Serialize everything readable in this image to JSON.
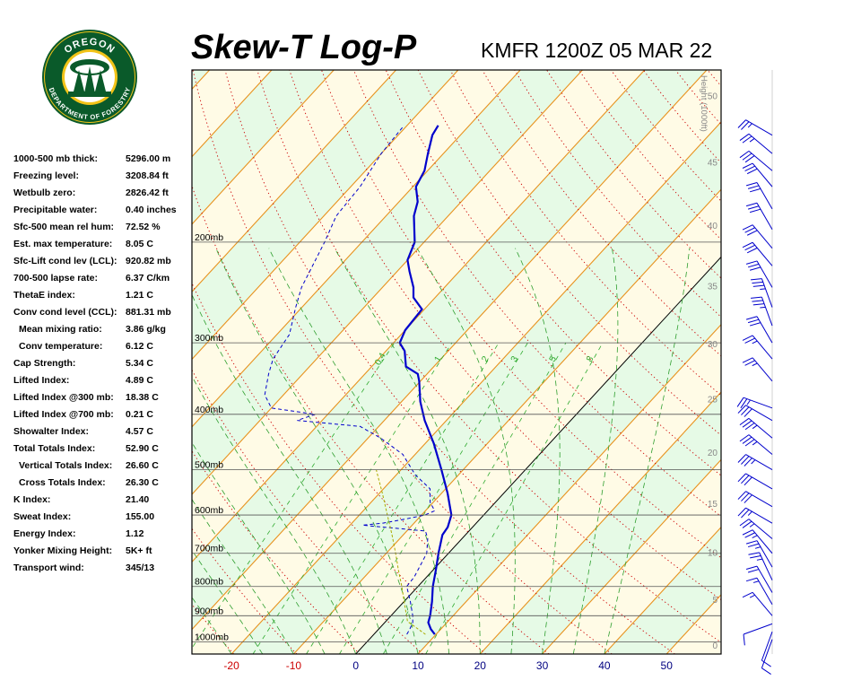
{
  "header": {
    "title": "Skew-T Log-P",
    "station_time": "KMFR 1200Z 05 MAR 22"
  },
  "logo": {
    "top_text": "OREGON",
    "bottom_text": "DEPARTMENT OF FORESTRY",
    "colors": {
      "ring": "#0a5a2a",
      "inner": "#f2c318",
      "trees": "#0a5a2a"
    }
  },
  "indices": [
    {
      "label": "1000-500 mb thick:",
      "value": "5296.00 m",
      "indent": false
    },
    {
      "label": "Freezing level:",
      "value": "3208.84 ft",
      "indent": false
    },
    {
      "label": "Wetbulb zero:",
      "value": "2826.42 ft",
      "indent": false
    },
    {
      "label": "Precipitable water:",
      "value": "0.40 inches",
      "indent": false
    },
    {
      "label": "Sfc-500 mean rel hum:",
      "value": "72.52 %",
      "indent": false
    },
    {
      "label": "Est. max temperature:",
      "value": "8.05 C",
      "indent": false
    },
    {
      "label": "Sfc-Lift cond lev (LCL):",
      "value": "920.82 mb",
      "indent": false
    },
    {
      "label": "700-500 lapse rate:",
      "value": "6.37 C/km",
      "indent": false
    },
    {
      "label": "ThetaE index:",
      "value": "1.21 C",
      "indent": false
    },
    {
      "label": "Conv cond level (CCL):",
      "value": "881.31 mb",
      "indent": false
    },
    {
      "label": "Mean mixing ratio:",
      "value": "3.86 g/kg",
      "indent": true
    },
    {
      "label": "Conv temperature:",
      "value": "6.12 C",
      "indent": true
    },
    {
      "label": "Cap Strength:",
      "value": "5.34 C",
      "indent": false
    },
    {
      "label": "Lifted Index:",
      "value": "4.89 C",
      "indent": false
    },
    {
      "label": "Lifted Index @300 mb:",
      "value": "18.38 C",
      "indent": false
    },
    {
      "label": "Lifted Index @700 mb:",
      "value": "0.21 C",
      "indent": false
    },
    {
      "label": "Showalter Index:",
      "value": "4.57 C",
      "indent": false
    },
    {
      "label": "Total Totals Index:",
      "value": "52.90 C",
      "indent": false
    },
    {
      "label": "Vertical Totals Index:",
      "value": "26.60 C",
      "indent": true
    },
    {
      "label": "Cross Totals Index:",
      "value": "26.30 C",
      "indent": true
    },
    {
      "label": "K Index:",
      "value": "21.40",
      "indent": false
    },
    {
      "label": "Sweat Index:",
      "value": "155.00",
      "indent": false
    },
    {
      "label": "Energy Index:",
      "value": "1.12",
      "indent": false
    },
    {
      "label": "Yonker Mixing Height:",
      "value": "5K+ ft",
      "indent": false
    },
    {
      "label": "Transport wind:",
      "value": "345/13",
      "indent": false
    }
  ],
  "chart_data": {
    "type": "line",
    "x_ticks": [
      {
        "value": -20,
        "label": "-20"
      },
      {
        "value": -10,
        "label": "-10"
      },
      {
        "value": 0,
        "label": "0"
      },
      {
        "value": 10,
        "label": "10"
      },
      {
        "value": 20,
        "label": "20"
      },
      {
        "value": 30,
        "label": "30"
      },
      {
        "value": 40,
        "label": "40"
      },
      {
        "value": 50,
        "label": "50"
      }
    ],
    "x_tick_colors": {
      "negative": "#cc0000",
      "nonnegative": "#000080"
    },
    "pressure_levels": [
      {
        "p": 200,
        "label": "200mb"
      },
      {
        "p": 300,
        "label": "300mb"
      },
      {
        "p": 400,
        "label": "400mb"
      },
      {
        "p": 500,
        "label": "500mb"
      },
      {
        "p": 600,
        "label": "600mb"
      },
      {
        "p": 700,
        "label": "700mb"
      },
      {
        "p": 800,
        "label": "800mb"
      },
      {
        "p": 900,
        "label": "900mb"
      },
      {
        "p": 1000,
        "label": "1000mb"
      }
    ],
    "height_axis": {
      "label": "Height (1000ft)",
      "ticks": [
        {
          "kft": 0,
          "label": "0"
        },
        {
          "kft": 5,
          "label": "5"
        },
        {
          "kft": 10,
          "label": "10"
        },
        {
          "kft": 15,
          "label": "15"
        },
        {
          "kft": 20,
          "label": "20"
        },
        {
          "kft": 25,
          "label": "25"
        },
        {
          "kft": 30,
          "label": "30"
        },
        {
          "kft": 35,
          "label": "35"
        },
        {
          "kft": 40,
          "label": "40"
        },
        {
          "kft": 45,
          "label": "45"
        },
        {
          "kft": 50,
          "label": "50"
        }
      ]
    },
    "mixing_ratio_lines": [
      {
        "w": 0.4,
        "label": "0.4"
      },
      {
        "w": 1,
        "label": "1"
      },
      {
        "w": 2,
        "label": "2"
      },
      {
        "w": 3,
        "label": "3"
      },
      {
        "w": 5,
        "label": "5"
      },
      {
        "w": 8,
        "label": "8"
      }
    ],
    "series": [
      {
        "key": "temperature",
        "color": "#0000cc",
        "points": [
          {
            "p": 970,
            "t": 9.8
          },
          {
            "p": 950,
            "t": 8.4
          },
          {
            "p": 925,
            "t": 7.0
          },
          {
            "p": 900,
            "t": 6.3
          },
          {
            "p": 850,
            "t": 4.5
          },
          {
            "p": 800,
            "t": 2.4
          },
          {
            "p": 750,
            "t": 0.5
          },
          {
            "p": 700,
            "t": -1.6
          },
          {
            "p": 650,
            "t": -3.7
          },
          {
            "p": 630,
            "t": -4.0
          },
          {
            "p": 600,
            "t": -5.2
          },
          {
            "p": 550,
            "t": -9.0
          },
          {
            "p": 500,
            "t": -13.5
          },
          {
            "p": 450,
            "t": -18.6
          },
          {
            "p": 410,
            "t": -23.5
          },
          {
            "p": 380,
            "t": -27.0
          },
          {
            "p": 350,
            "t": -30.2
          },
          {
            "p": 340,
            "t": -31.5
          },
          {
            "p": 330,
            "t": -34.5
          },
          {
            "p": 310,
            "t": -37.0
          },
          {
            "p": 300,
            "t": -39.0
          },
          {
            "p": 285,
            "t": -40.0
          },
          {
            "p": 262,
            "t": -40.4
          },
          {
            "p": 250,
            "t": -43.5
          },
          {
            "p": 240,
            "t": -45.0
          },
          {
            "p": 225,
            "t": -48.0
          },
          {
            "p": 215,
            "t": -50.0
          },
          {
            "p": 200,
            "t": -51.5
          },
          {
            "p": 180,
            "t": -55.5
          },
          {
            "p": 170,
            "t": -57.0
          },
          {
            "p": 160,
            "t": -59.5
          },
          {
            "p": 150,
            "t": -60.5
          },
          {
            "p": 140,
            "t": -62.5
          },
          {
            "p": 130,
            "t": -64.5
          },
          {
            "p": 125,
            "t": -65.0
          }
        ]
      },
      {
        "key": "dewpoint",
        "color": "#0000cc",
        "points": [
          {
            "p": 970,
            "t": 5.3
          },
          {
            "p": 950,
            "t": 5.0
          },
          {
            "p": 925,
            "t": 4.5
          },
          {
            "p": 900,
            "t": 3.5
          },
          {
            "p": 850,
            "t": 1.0
          },
          {
            "p": 800,
            "t": -1.8
          },
          {
            "p": 770,
            "t": -2.0
          },
          {
            "p": 700,
            "t": -3.5
          },
          {
            "p": 660,
            "t": -5.5
          },
          {
            "p": 640,
            "t": -7.0
          },
          {
            "p": 625,
            "t": -18.0
          },
          {
            "p": 620,
            "t": -15.0
          },
          {
            "p": 610,
            "t": -12.0
          },
          {
            "p": 600,
            "t": -9.5
          },
          {
            "p": 590,
            "t": -8.5
          },
          {
            "p": 570,
            "t": -10.5
          },
          {
            "p": 540,
            "t": -12.5
          },
          {
            "p": 510,
            "t": -17.0
          },
          {
            "p": 470,
            "t": -22.0
          },
          {
            "p": 440,
            "t": -28.0
          },
          {
            "p": 420,
            "t": -33.0
          },
          {
            "p": 410,
            "t": -44.0
          },
          {
            "p": 400,
            "t": -42.0
          },
          {
            "p": 390,
            "t": -50.0
          },
          {
            "p": 370,
            "t": -53.0
          },
          {
            "p": 340,
            "t": -55.5
          },
          {
            "p": 320,
            "t": -57.0
          },
          {
            "p": 290,
            "t": -58.0
          },
          {
            "p": 260,
            "t": -61.0
          },
          {
            "p": 240,
            "t": -63.0
          },
          {
            "p": 200,
            "t": -66.0
          },
          {
            "p": 180,
            "t": -68.0
          },
          {
            "p": 160,
            "t": -68.5
          },
          {
            "p": 140,
            "t": -70.0
          },
          {
            "p": 125,
            "t": -70.5
          }
        ]
      },
      {
        "key": "parcel",
        "color": "#aaaa00",
        "points": [
          {
            "p": 970,
            "t": 8.3
          },
          {
            "p": 921,
            "t": 3.5
          },
          {
            "p": 850,
            "t": 0.0
          },
          {
            "p": 800,
            "t": -2.6
          },
          {
            "p": 750,
            "t": -5.5
          },
          {
            "p": 700,
            "t": -8.5
          },
          {
            "p": 650,
            "t": -11.8
          },
          {
            "p": 600,
            "t": -15.5
          },
          {
            "p": 550,
            "t": -19.5
          },
          {
            "p": 500,
            "t": -24.0
          }
        ]
      }
    ],
    "wind_barbs": [
      {
        "p": 990,
        "dir": 200,
        "spd": 10
      },
      {
        "p": 960,
        "dir": 200,
        "spd": 10
      },
      {
        "p": 930,
        "dir": 250,
        "spd": 10
      },
      {
        "p": 900,
        "dir": 320,
        "spd": 15
      },
      {
        "p": 860,
        "dir": 330,
        "spd": 15
      },
      {
        "p": 820,
        "dir": 330,
        "spd": 20
      },
      {
        "p": 780,
        "dir": 335,
        "spd": 25
      },
      {
        "p": 740,
        "dir": 330,
        "spd": 25
      },
      {
        "p": 700,
        "dir": 320,
        "spd": 25
      },
      {
        "p": 660,
        "dir": 310,
        "spd": 25
      },
      {
        "p": 620,
        "dir": 300,
        "spd": 25
      },
      {
        "p": 580,
        "dir": 300,
        "spd": 30
      },
      {
        "p": 540,
        "dir": 300,
        "spd": 30
      },
      {
        "p": 500,
        "dir": 300,
        "spd": 35
      },
      {
        "p": 470,
        "dir": 310,
        "spd": 35
      },
      {
        "p": 440,
        "dir": 310,
        "spd": 35
      },
      {
        "p": 410,
        "dir": 300,
        "spd": 30
      },
      {
        "p": 390,
        "dir": 290,
        "spd": 25
      },
      {
        "p": 350,
        "dir": 320,
        "spd": 25
      },
      {
        "p": 320,
        "dir": 320,
        "spd": 25
      },
      {
        "p": 300,
        "dir": 330,
        "spd": 30
      },
      {
        "p": 280,
        "dir": 340,
        "spd": 35
      },
      {
        "p": 260,
        "dir": 340,
        "spd": 35
      },
      {
        "p": 240,
        "dir": 330,
        "spd": 30
      },
      {
        "p": 220,
        "dir": 320,
        "spd": 30
      },
      {
        "p": 205,
        "dir": 320,
        "spd": 30
      },
      {
        "p": 190,
        "dir": 330,
        "spd": 30
      },
      {
        "p": 175,
        "dir": 330,
        "spd": 30
      },
      {
        "p": 160,
        "dir": 320,
        "spd": 30
      },
      {
        "p": 150,
        "dir": 310,
        "spd": 30
      },
      {
        "p": 140,
        "dir": 310,
        "spd": 25
      },
      {
        "p": 130,
        "dir": 300,
        "spd": 25
      }
    ],
    "colors": {
      "isotherm": "#e8921e",
      "dry_adiabat": "#cc0000",
      "moist_adiabat": "#2e9e2e",
      "mixing_ratio": "#2eaa2e",
      "band_green": "#e6fae6",
      "band_yellow": "#fffbe6",
      "isobar": "#555555",
      "height_label": "#888888",
      "barb": "#0000cc"
    }
  }
}
